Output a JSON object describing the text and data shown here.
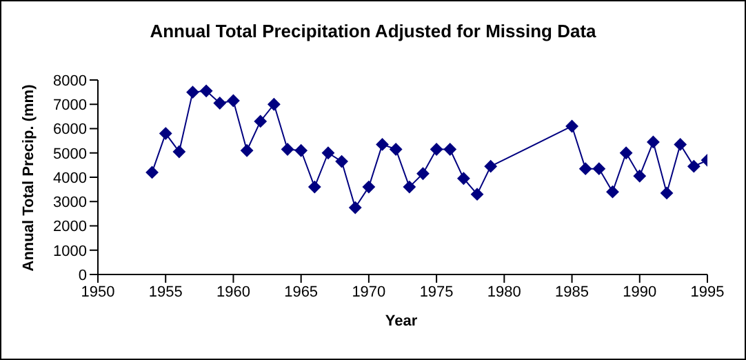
{
  "chart_data": {
    "type": "line",
    "title": "Annual Total Precipitation Adjusted for Missing Data",
    "xlabel": "Year",
    "ylabel": "Annual Total Precip. (mm)",
    "x": [
      1954,
      1955,
      1956,
      1957,
      1958,
      1959,
      1960,
      1961,
      1962,
      1963,
      1964,
      1965,
      1966,
      1967,
      1968,
      1969,
      1970,
      1971,
      1972,
      1973,
      1974,
      1975,
      1976,
      1977,
      1978,
      1979,
      1985,
      1986,
      1987,
      1988,
      1989,
      1990,
      1991,
      1992,
      1993,
      1994,
      1995
    ],
    "series": [
      {
        "color": "#000080",
        "values": [
          4200,
          5800,
          5050,
          7500,
          7550,
          7050,
          7150,
          5100,
          6300,
          7000,
          5150,
          5100,
          3600,
          5000,
          4650,
          2750,
          3600,
          5350,
          5150,
          3600,
          4150,
          5150,
          5150,
          3950,
          3300,
          4450,
          6100,
          4350,
          4350,
          3400,
          5000,
          4050,
          5450,
          3350,
          5350,
          4450,
          4700
        ]
      }
    ],
    "xlim": [
      1950,
      1995
    ],
    "xticks": [
      1950,
      1955,
      1960,
      1965,
      1970,
      1975,
      1980,
      1985,
      1990,
      1995
    ],
    "ylim": [
      0,
      8000
    ],
    "yticks": [
      0,
      1000,
      2000,
      3000,
      4000,
      5000,
      6000,
      7000,
      8000
    ],
    "grid": false,
    "legend": false,
    "marker": "diamond",
    "line_style": "solid"
  }
}
